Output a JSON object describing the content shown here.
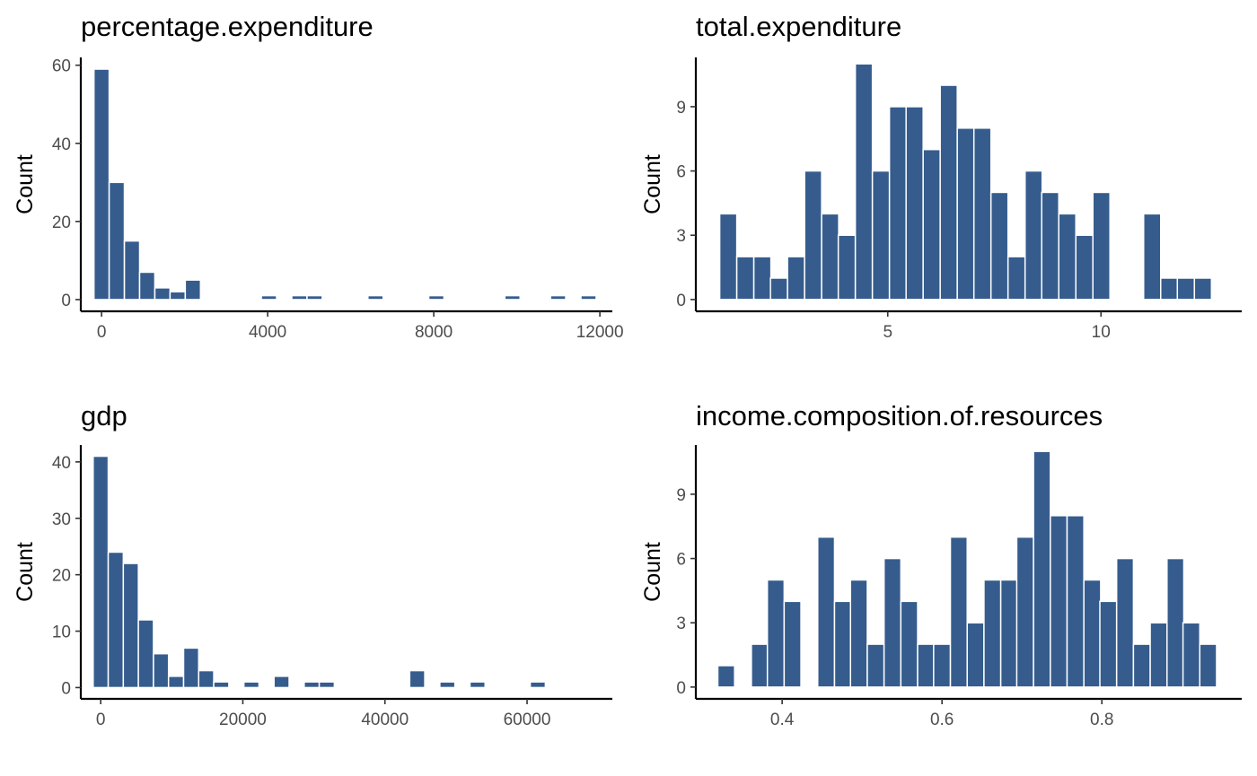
{
  "chart_data": [
    {
      "type": "bar",
      "title": "percentage.expenditure",
      "ylabel": "Count",
      "xlabel": "",
      "bin_centers": [
        0,
        366,
        733,
        1099,
        1466,
        1832,
        2199,
        2565,
        2932,
        3298,
        3665,
        4031,
        4398,
        4764,
        5131,
        5497,
        5864,
        6230,
        6597,
        6963,
        7330,
        7696,
        8062,
        8429,
        8795,
        9162,
        9528,
        9895,
        10261,
        10628,
        10994,
        11361,
        11727
      ],
      "counts": [
        59,
        30,
        15,
        7,
        3,
        2,
        5,
        0,
        0,
        0,
        0,
        1,
        0,
        1,
        1,
        0,
        0,
        0,
        1,
        0,
        0,
        0,
        1,
        0,
        0,
        0,
        0,
        1,
        0,
        0,
        1,
        0,
        1
      ],
      "xlim": [
        -500,
        12300
      ],
      "ylim": [
        -3,
        62
      ],
      "xticks": [
        0,
        4000,
        8000,
        12000
      ],
      "xtick_labels": [
        "0",
        "4000",
        "8000",
        "12000"
      ],
      "yticks": [
        0,
        20,
        40,
        60
      ],
      "ytick_labels": [
        "0",
        "20",
        "40",
        "60"
      ],
      "grid": false
    },
    {
      "type": "bar",
      "title": "total.expenditure",
      "ylabel": "Count",
      "xlabel": "",
      "bin_centers": [
        1.26,
        1.66,
        2.06,
        2.45,
        2.85,
        3.25,
        3.65,
        4.04,
        4.44,
        4.84,
        5.24,
        5.63,
        6.03,
        6.43,
        6.83,
        7.22,
        7.62,
        8.02,
        8.42,
        8.81,
        9.21,
        9.61,
        10.01,
        10.4,
        10.8,
        11.2,
        11.6,
        11.99,
        12.39
      ],
      "counts": [
        4,
        2,
        2,
        1,
        2,
        6,
        4,
        3,
        11,
        6,
        9,
        9,
        7,
        10,
        8,
        8,
        5,
        2,
        6,
        5,
        4,
        3,
        5,
        0,
        0,
        4,
        1,
        1,
        1
      ],
      "xlim": [
        0.5,
        13.3
      ],
      "ylim": [
        -0.55,
        11.3
      ],
      "xticks": [
        5,
        10
      ],
      "xtick_labels": [
        "5",
        "10"
      ],
      "yticks": [
        0,
        3,
        6,
        9
      ],
      "ytick_labels": [
        "0",
        "3",
        "6",
        "9"
      ],
      "grid": false
    },
    {
      "type": "bar",
      "title": "gdp",
      "ylabel": "Count",
      "xlabel": "",
      "bin_centers": [
        0,
        2121,
        4242,
        6363,
        8485,
        10606,
        12727,
        14848,
        16969,
        19090,
        21211,
        23332,
        25453,
        27575,
        29696,
        31817,
        33938,
        36059,
        38180,
        40301,
        42422,
        44543,
        46665,
        48786,
        50907,
        53028,
        55149,
        57270,
        59391,
        61512,
        63633,
        65755,
        67876
      ],
      "counts": [
        41,
        24,
        22,
        12,
        6,
        2,
        7,
        3,
        1,
        0,
        1,
        0,
        2,
        0,
        1,
        1,
        0,
        0,
        0,
        0,
        0,
        3,
        0,
        1,
        0,
        1,
        0,
        0,
        0,
        1,
        0,
        0,
        0
      ],
      "xlim": [
        -2800,
        72000
      ],
      "ylim": [
        -2,
        43
      ],
      "xticks": [
        0,
        20000,
        40000,
        60000
      ],
      "xtick_labels": [
        "0",
        "20000",
        "40000",
        "60000"
      ],
      "yticks": [
        0,
        10,
        20,
        30,
        40
      ],
      "ytick_labels": [
        "0",
        "10",
        "20",
        "30",
        "40"
      ],
      "grid": false
    },
    {
      "type": "bar",
      "title": "income.composition.of.resources",
      "ylabel": "Count",
      "xlabel": "",
      "bin_centers": [
        0.33,
        0.351,
        0.372,
        0.392,
        0.413,
        0.434,
        0.455,
        0.476,
        0.496,
        0.517,
        0.538,
        0.559,
        0.58,
        0.6,
        0.621,
        0.642,
        0.663,
        0.684,
        0.704,
        0.725,
        0.746,
        0.767,
        0.788,
        0.808,
        0.829,
        0.85,
        0.871,
        0.892,
        0.912,
        0.933
      ],
      "counts": [
        1,
        0,
        2,
        5,
        4,
        0,
        7,
        4,
        5,
        2,
        6,
        4,
        2,
        2,
        7,
        3,
        5,
        5,
        7,
        11,
        8,
        8,
        5,
        4,
        6,
        2,
        3,
        6,
        3,
        2
      ],
      "xlim": [
        0.292,
        0.975
      ],
      "ylim": [
        -0.55,
        11.3
      ],
      "xticks": [
        0.4,
        0.6,
        0.8
      ],
      "xtick_labels": [
        "0.4",
        "0.6",
        "0.8"
      ],
      "yticks": [
        0,
        3,
        6,
        9
      ],
      "ytick_labels": [
        "0",
        "3",
        "6",
        "9"
      ],
      "grid": false
    }
  ],
  "colors": {
    "bar_fill": "#355c8d",
    "bar_outline": "#ffffff",
    "axis": "#000000",
    "tick_label": "#4d4d4d"
  }
}
